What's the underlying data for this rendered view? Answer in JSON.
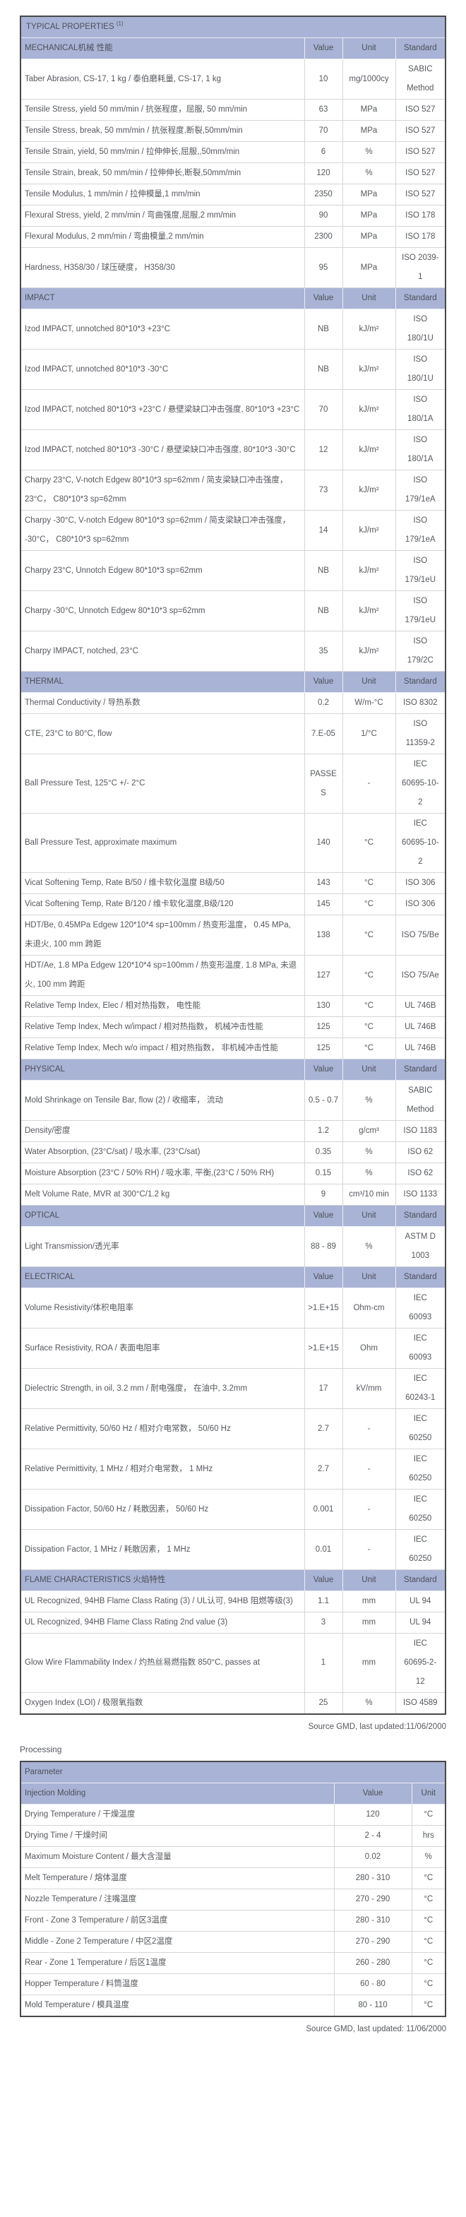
{
  "colors": {
    "header_bg": "#a9b3d5",
    "text": "#56585f",
    "border_dark": "#48494b",
    "border_light": "#d6d6d8"
  },
  "main_table": {
    "title": "TYPICAL PROPERTIES",
    "title_sup": "(1)",
    "columns": {
      "value": "Value",
      "unit": "Unit",
      "standard": "Standard"
    },
    "sections": [
      {
        "label": "MECHANICAL机械 性能",
        "rows": [
          {
            "property": "Taber Abrasion, CS-17, 1 kg / 泰伯磨耗量, CS-17, 1 kg",
            "value": "10",
            "unit": "mg/1000cy",
            "standard": "SABIC Method"
          },
          {
            "property": "Tensile Stress, yield 50 mm/min / 抗张程度，屈服, 50 mm/min",
            "value": "63",
            "unit": "MPa",
            "standard": "ISO 527"
          },
          {
            "property": "Tensile Stress, break, 50 mm/min / 抗张程度,断裂,50mm/min",
            "value": "70",
            "unit": "MPa",
            "standard": "ISO 527"
          },
          {
            "property": "Tensile Strain, yield, 50 mm/min / 拉伸伸长,屈服,,50mm/min",
            "value": "6",
            "unit": "%",
            "standard": "ISO 527"
          },
          {
            "property": "Tensile Strain, break, 50 mm/min / 拉伸伸长,断裂,50mm/min",
            "value": "120",
            "unit": "%",
            "standard": "ISO 527"
          },
          {
            "property": "Tensile Modulus, 1 mm/min / 拉伸模量,1 mm/min",
            "value": "2350",
            "unit": "MPa",
            "standard": "ISO 527"
          },
          {
            "property": "Flexural Stress, yield, 2 mm/min / 弯曲强度,屈服,2 mm/min",
            "value": "90",
            "unit": "MPa",
            "standard": "ISO 178"
          },
          {
            "property": "Flexural Modulus, 2 mm/min / 弯曲模量,2 mm/min",
            "value": "2300",
            "unit": "MPa",
            "standard": "ISO 178"
          },
          {
            "property": "Hardness, H358/30 / 球压硬度， H358/30",
            "value": "95",
            "unit": "MPa",
            "standard": "ISO 2039-1"
          }
        ]
      },
      {
        "label": "IMPACT",
        "rows": [
          {
            "property": "Izod IMPACT, unnotched 80*10*3 +23°C",
            "value": "NB",
            "unit": "kJ/m²",
            "standard": "ISO 180/1U"
          },
          {
            "property": "Izod IMPACT, unnotched 80*10*3 -30°C",
            "value": "NB",
            "unit": "kJ/m²",
            "standard": "ISO 180/1U"
          },
          {
            "property": "Izod IMPACT, notched 80*10*3 +23°C / 悬壁梁缺口冲击强度, 80*10*3 +23°C",
            "value": "70",
            "unit": "kJ/m²",
            "standard": "ISO 180/1A"
          },
          {
            "property": "Izod IMPACT, notched 80*10*3 -30°C / 悬壁梁缺口冲击强度, 80*10*3 -30°C",
            "value": "12",
            "unit": "kJ/m²",
            "standard": "ISO 180/1A"
          },
          {
            "property": "Charpy 23°C, V-notch Edgew 80*10*3 sp=62mm / 简支梁缺口冲击强度， 23°C， C80*10*3 sp=62mm",
            "value": "73",
            "unit": "kJ/m²",
            "standard": "ISO 179/1eA"
          },
          {
            "property": "Charpy -30°C, V-notch Edgew 80*10*3 sp=62mm / 简支梁缺口冲击强度， -30°C， C80*10*3 sp=62mm",
            "value": "14",
            "unit": "kJ/m²",
            "standard": "ISO 179/1eA"
          },
          {
            "property": "Charpy 23°C, Unnotch Edgew 80*10*3 sp=62mm",
            "value": "NB",
            "unit": "kJ/m²",
            "standard": "ISO 179/1eU"
          },
          {
            "property": "Charpy -30°C, Unnotch Edgew 80*10*3 sp=62mm",
            "value": "NB",
            "unit": "kJ/m²",
            "standard": "ISO 179/1eU"
          },
          {
            "property": "Charpy IMPACT, notched, 23°C",
            "value": "35",
            "unit": "kJ/m²",
            "standard": "ISO 179/2C"
          }
        ]
      },
      {
        "label": "THERMAL",
        "rows": [
          {
            "property": "Thermal Conductivity / 导热系数",
            "value": "0.2",
            "unit": "W/m-°C",
            "standard": "ISO 8302"
          },
          {
            "property": "CTE, 23°C to 80°C, flow",
            "value": "7.E-05",
            "unit": "1/°C",
            "standard": "ISO 11359-2"
          },
          {
            "property": "Ball Pressure Test, 125°C +/- 2°C",
            "value": "PASSES",
            "unit": "-",
            "standard": "IEC 60695-10-2"
          },
          {
            "property": "Ball Pressure Test, approximate maximum",
            "value": "140",
            "unit": "°C",
            "standard": "IEC 60695-10-2"
          },
          {
            "property": "Vicat Softening Temp, Rate B/50 / 维卡软化温度 B级/50",
            "value": "143",
            "unit": "°C",
            "standard": "ISO 306"
          },
          {
            "property": "Vicat Softening Temp, Rate B/120 / 维卡软化温度,B级/120",
            "value": "145",
            "unit": "°C",
            "standard": "ISO 306"
          },
          {
            "property": "HDT/Be, 0.45MPa Edgew 120*10*4 sp=100mm / 热变形温度， 0.45 MPa, 未退火, 100 mm 跨距",
            "value": "138",
            "unit": "°C",
            "standard": "ISO 75/Be"
          },
          {
            "property": "HDT/Ae, 1.8 MPa Edgew 120*10*4 sp=100mm / 热变形温度, 1.8 MPa, 未退火, 100 mm 跨距",
            "value": "127",
            "unit": "°C",
            "standard": "ISO 75/Ae"
          },
          {
            "property": "Relative Temp Index, Elec / 相对热指数， 电性能",
            "value": "130",
            "unit": "°C",
            "standard": "UL 746B"
          },
          {
            "property": "Relative Temp Index, Mech w/impact / 相对热指数， 机械冲击性能",
            "value": "125",
            "unit": "°C",
            "standard": "UL 746B"
          },
          {
            "property": "Relative Temp Index, Mech w/o impact / 相对热指数， 非机械冲击性能",
            "value": "125",
            "unit": "°C",
            "standard": "UL 746B"
          }
        ]
      },
      {
        "label": "PHYSICAL",
        "rows": [
          {
            "property": "Mold Shrinkage on Tensile Bar, flow (2) / 收缩率， 流动",
            "value": "0.5 - 0.7",
            "unit": "%",
            "standard": "SABIC Method"
          },
          {
            "property": "Density/密度",
            "value": "1.2",
            "unit": "g/cm³",
            "standard": "ISO 1183"
          },
          {
            "property": "Water Absorption, (23°C/sat) / 吸水率, (23°C/sat)",
            "value": "0.35",
            "unit": "%",
            "standard": "ISO 62"
          },
          {
            "property": "Moisture Absorption (23°C / 50% RH) / 吸水率, 平衡,(23°C / 50% RH)",
            "value": "0.15",
            "unit": "%",
            "standard": "ISO 62"
          },
          {
            "property": "Melt Volume Rate, MVR at 300°C/1.2 kg",
            "value": "9",
            "unit": "cm³/10 min",
            "standard": "ISO 1133"
          }
        ]
      },
      {
        "label": "OPTICAL",
        "rows": [
          {
            "property": "Light Transmission/透光率",
            "value": "88 - 89",
            "unit": "%",
            "standard": "ASTM D 1003"
          }
        ]
      },
      {
        "label": "ELECTRICAL",
        "rows": [
          {
            "property": "Volume Resistivity/体积电阻率",
            "value": ">1.E+15",
            "unit": "Ohm-cm",
            "standard": "IEC 60093"
          },
          {
            "property": "Surface Resistivity, ROA / 表面电阻率",
            "value": ">1.E+15",
            "unit": "Ohm",
            "standard": "IEC 60093"
          },
          {
            "property": "Dielectric Strength, in oil, 3.2 mm / 耐电强度， 在油中, 3.2mm",
            "value": "17",
            "unit": "kV/mm",
            "standard": "IEC 60243-1"
          },
          {
            "property": "Relative Permittivity, 50/60 Hz / 相对介电常数， 50/60 Hz",
            "value": "2.7",
            "unit": "-",
            "standard": "IEC 60250"
          },
          {
            "property": "Relative Permittivity, 1 MHz / 相对介电常数， 1 MHz",
            "value": "2.7",
            "unit": "-",
            "standard": "IEC 60250"
          },
          {
            "property": "Dissipation Factor, 50/60 Hz / 耗散因素， 50/60 Hz",
            "value": "0.001",
            "unit": "-",
            "standard": "IEC 60250"
          },
          {
            "property": "Dissipation Factor, 1 MHz / 耗散因素， 1 MHz",
            "value": "0.01",
            "unit": "-",
            "standard": "IEC 60250"
          }
        ]
      },
      {
        "label": "FLAME CHARACTERISTICS 火焰特性",
        "rows": [
          {
            "property": "UL Recognized, 94HB Flame Class Rating (3) / UL认可, 94HB 阻燃等级(3)",
            "value": "1.1",
            "unit": "mm",
            "standard": "UL 94"
          },
          {
            "property": "UL Recognized, 94HB Flame Class Rating 2nd value (3)",
            "value": "3",
            "unit": "mm",
            "standard": "UL 94"
          },
          {
            "property": "Glow Wire Flammability Index / 灼热丝易燃指数 850°C, passes at",
            "value": "1",
            "unit": "mm",
            "standard": "IEC 60695-2-12"
          },
          {
            "property": "Oxygen Index (LOI) / 极限氧指数",
            "value": "25",
            "unit": "%",
            "standard": "ISO 4589"
          }
        ]
      }
    ],
    "source": "Source GMD, last updated:11/06/2000"
  },
  "processing": {
    "heading": "Processing",
    "header": "Parameter",
    "subheader": "Injection Molding",
    "columns": {
      "value": "Value",
      "unit": "Unit"
    },
    "rows": [
      {
        "parameter": "Drying Temperature / 干燥温度",
        "value": "120",
        "unit": "°C"
      },
      {
        "parameter": "Drying Time / 干燥时间",
        "value": "2 - 4",
        "unit": "hrs"
      },
      {
        "parameter": "Maximum Moisture Content / 最大含湿量",
        "value": "0.02",
        "unit": "%"
      },
      {
        "parameter": "Melt Temperature / 熔体温度",
        "value": "280 - 310",
        "unit": "°C"
      },
      {
        "parameter": "Nozzle Temperature / 注嘴温度",
        "value": "270 - 290",
        "unit": "°C"
      },
      {
        "parameter": "Front - Zone 3 Temperature / 前区3温度",
        "value": "280 - 310",
        "unit": "°C"
      },
      {
        "parameter": "Middle - Zone 2 Temperature / 中区2温度",
        "value": "270 - 290",
        "unit": "°C"
      },
      {
        "parameter": "Rear - Zone 1 Temperature / 后区1温度",
        "value": "260 - 280",
        "unit": "°C"
      },
      {
        "parameter": "Hopper Temperature / 料筒温度",
        "value": "60 - 80",
        "unit": "°C"
      },
      {
        "parameter": "Mold Temperature / 模具温度",
        "value": "80 - 110",
        "unit": "°C"
      }
    ],
    "source": "Source GMD, last updated: 11/06/2000"
  }
}
